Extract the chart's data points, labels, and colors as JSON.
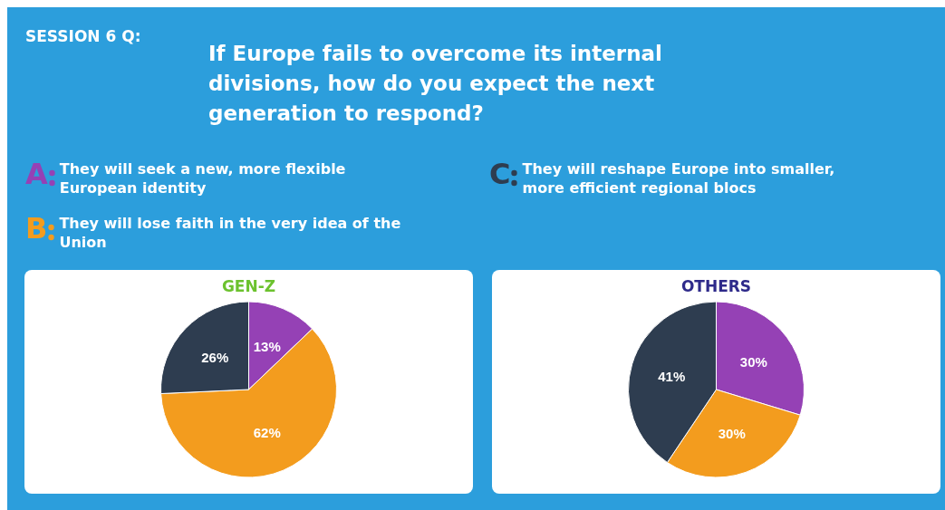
{
  "chart_data": [
    {
      "type": "other",
      "title": "SESSION 6 Q:",
      "subtitle": "If Europe fails to overcome its internal divisions, how do you expect the next generation to respond?",
      "annotations": [
        "They will seek a new, more flexible European identity",
        "They will lose faith in the very idea of the Union",
        "They will reshape Europe into smaller, more efficient regional blocs"
      ]
    },
    {
      "type": "pie",
      "title": "GEN-Z",
      "categories": [
        "A",
        "B",
        "C"
      ],
      "values": [
        13,
        62,
        26
      ],
      "value_labels": [
        "13%",
        "62%",
        "26%"
      ],
      "colors": [
        "#9541b5",
        "#f39c1e",
        "#2e3d50"
      ]
    },
    {
      "type": "pie",
      "title": "OTHERS",
      "categories": [
        null,
        null,
        null
      ],
      "values": [
        30,
        30,
        41
      ],
      "value_labels": [
        "30%",
        "30%",
        "41%"
      ],
      "colors": [
        "#9541b5",
        "#f39c1e",
        "#2e3d50"
      ]
    }
  ]
}
